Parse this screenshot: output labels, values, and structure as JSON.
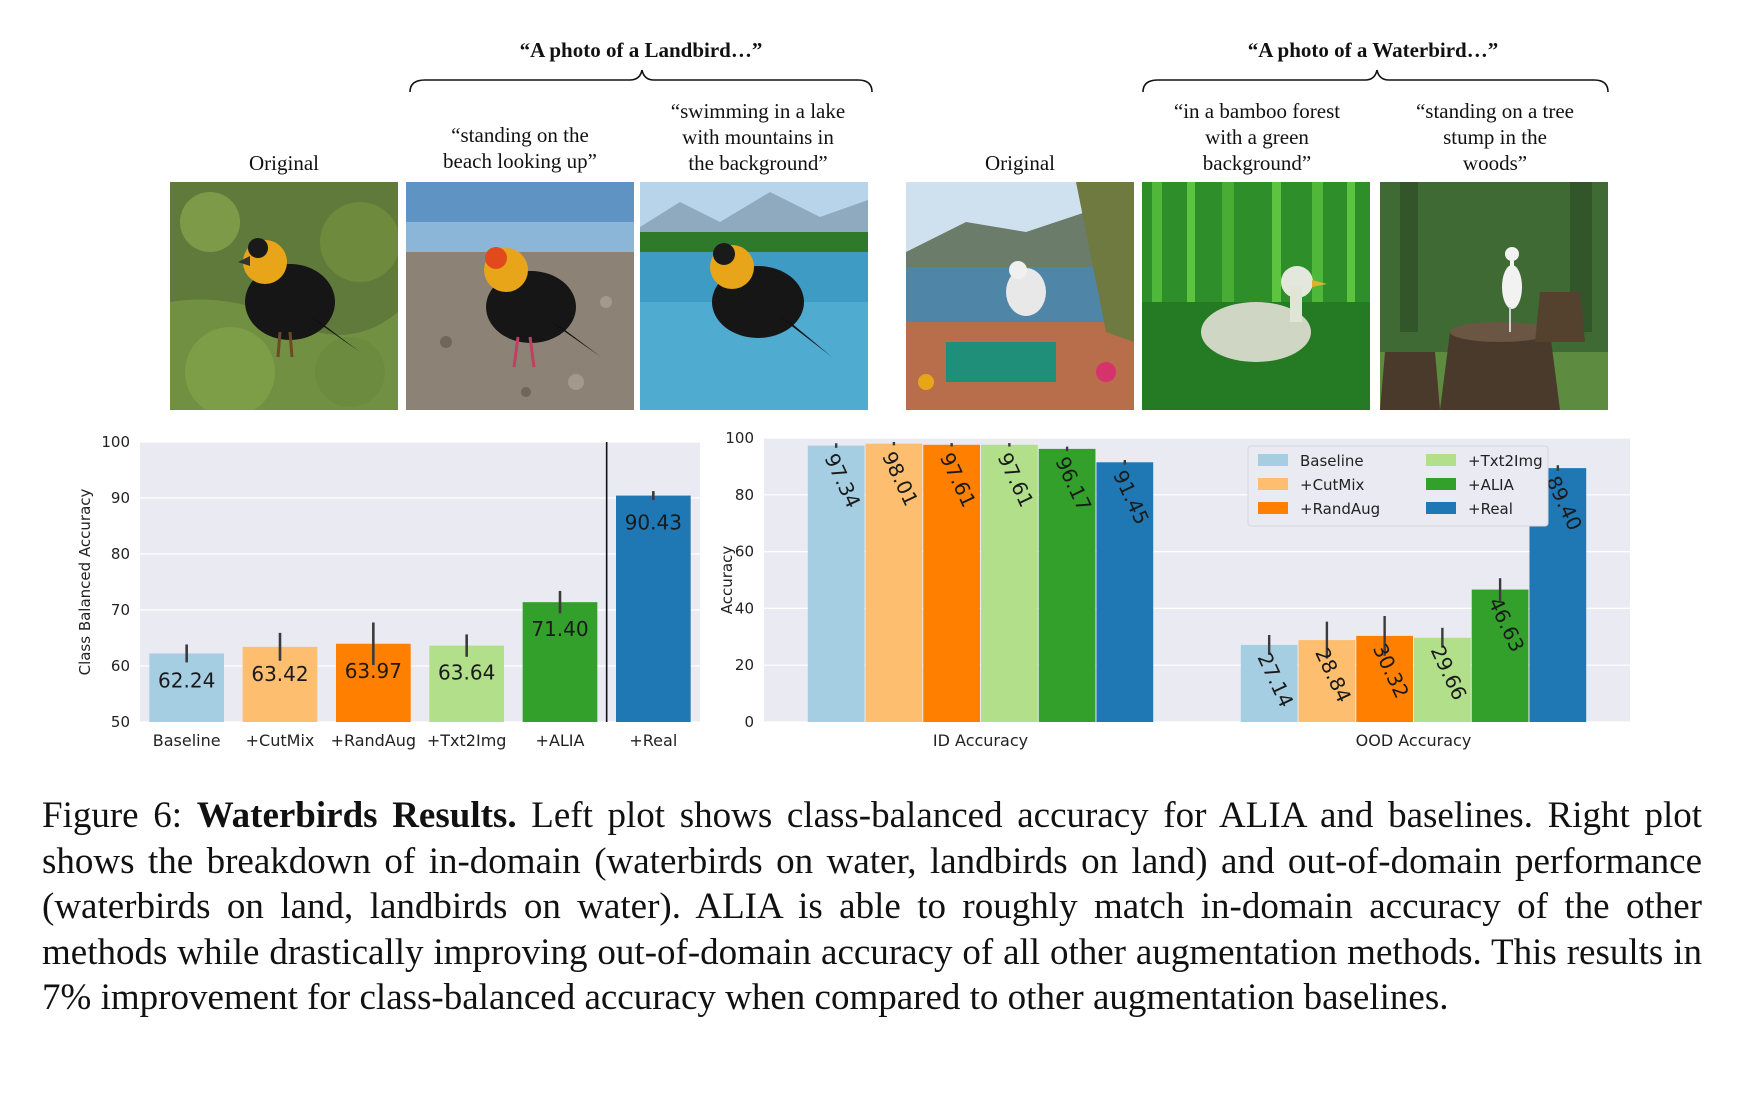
{
  "landbird_group": {
    "title": "“A photo of a Landbird…”",
    "original_label": "Original",
    "prompts": [
      [
        "“standing on the",
        "beach looking up”"
      ],
      [
        "“swimming in a lake",
        "with mountains in",
        "the background”"
      ]
    ]
  },
  "waterbird_group": {
    "title": "“A photo of a Waterbird…”",
    "original_label": "Original",
    "prompts": [
      [
        "“in a bamboo forest",
        "with a green",
        "background”"
      ],
      [
        "“standing on a tree",
        "stump in the",
        "woods”"
      ]
    ]
  },
  "chart_data": [
    {
      "type": "bar",
      "ylabel": "Class Balanced Accuracy",
      "ylim": [
        50,
        100
      ],
      "yticks": [
        50,
        60,
        70,
        80,
        90,
        100
      ],
      "categories": [
        "Baseline",
        "+CutMix",
        "+RandAug",
        "+Txt2Img",
        "+ALIA",
        "+Real"
      ],
      "values": [
        62.24,
        63.42,
        63.97,
        63.64,
        71.4,
        90.43
      ],
      "value_labels": [
        "62.24",
        "63.42",
        "63.97",
        "63.64",
        "71.40",
        "90.43"
      ],
      "error": [
        1.6,
        2.5,
        3.8,
        2.0,
        2.0,
        0.8
      ],
      "colors": [
        "#a6cee3",
        "#fdbf6f",
        "#ff7f00",
        "#b2df8a",
        "#33a02c",
        "#1f78b4"
      ],
      "grid": true,
      "separator_after": 4
    },
    {
      "type": "bar",
      "ylabel": "Accuracy",
      "ylim": [
        0,
        100
      ],
      "yticks": [
        0,
        20,
        40,
        60,
        80,
        100
      ],
      "categories": [
        "ID Accuracy",
        "OOD Accuracy"
      ],
      "series": [
        {
          "name": "Baseline",
          "values": [
            97.34,
            27.14
          ],
          "labels": [
            "97.34",
            "27.14"
          ],
          "error": [
            0.8,
            3.5
          ]
        },
        {
          "name": "+CutMix",
          "values": [
            98.01,
            28.84
          ],
          "labels": [
            "98.01",
            "28.84"
          ],
          "error": [
            0.6,
            6.5
          ]
        },
        {
          "name": "+RandAug",
          "values": [
            97.61,
            30.32
          ],
          "labels": [
            "97.61",
            "30.32"
          ],
          "error": [
            0.6,
            7.0
          ]
        },
        {
          "name": "+Txt2Img",
          "values": [
            97.61,
            29.66
          ],
          "labels": [
            "97.61",
            "29.66"
          ],
          "error": [
            0.6,
            3.5
          ]
        },
        {
          "name": "+ALIA",
          "values": [
            96.17,
            46.63
          ],
          "labels": [
            "96.17",
            "46.63"
          ],
          "error": [
            0.8,
            4.0
          ]
        },
        {
          "name": "+Real",
          "values": [
            91.45,
            89.4
          ],
          "labels": [
            "91.45",
            "89.40"
          ],
          "error": [
            0.8,
            1.0
          ]
        }
      ],
      "colors": [
        "#a6cee3",
        "#fdbf6f",
        "#ff7f00",
        "#b2df8a",
        "#33a02c",
        "#1f78b4"
      ],
      "legend_placement": "top-right",
      "grid": true
    }
  ],
  "caption": {
    "label": "Figure 6:",
    "bold": "Waterbirds Results.",
    "text": "Left plot shows class-balanced accuracy for ALIA and baselines. Right plot shows the breakdown of in-domain (waterbirds on water, landbirds on land) and out-of-domain performance (waterbirds on land, landbirds on water). ALIA is able to roughly match in-domain accuracy of the other methods while drastically improving out-of-domain accuracy of all other augmentation methods. This results in 7% improvement for class-balanced accuracy when compared to other augmentation baselines."
  }
}
